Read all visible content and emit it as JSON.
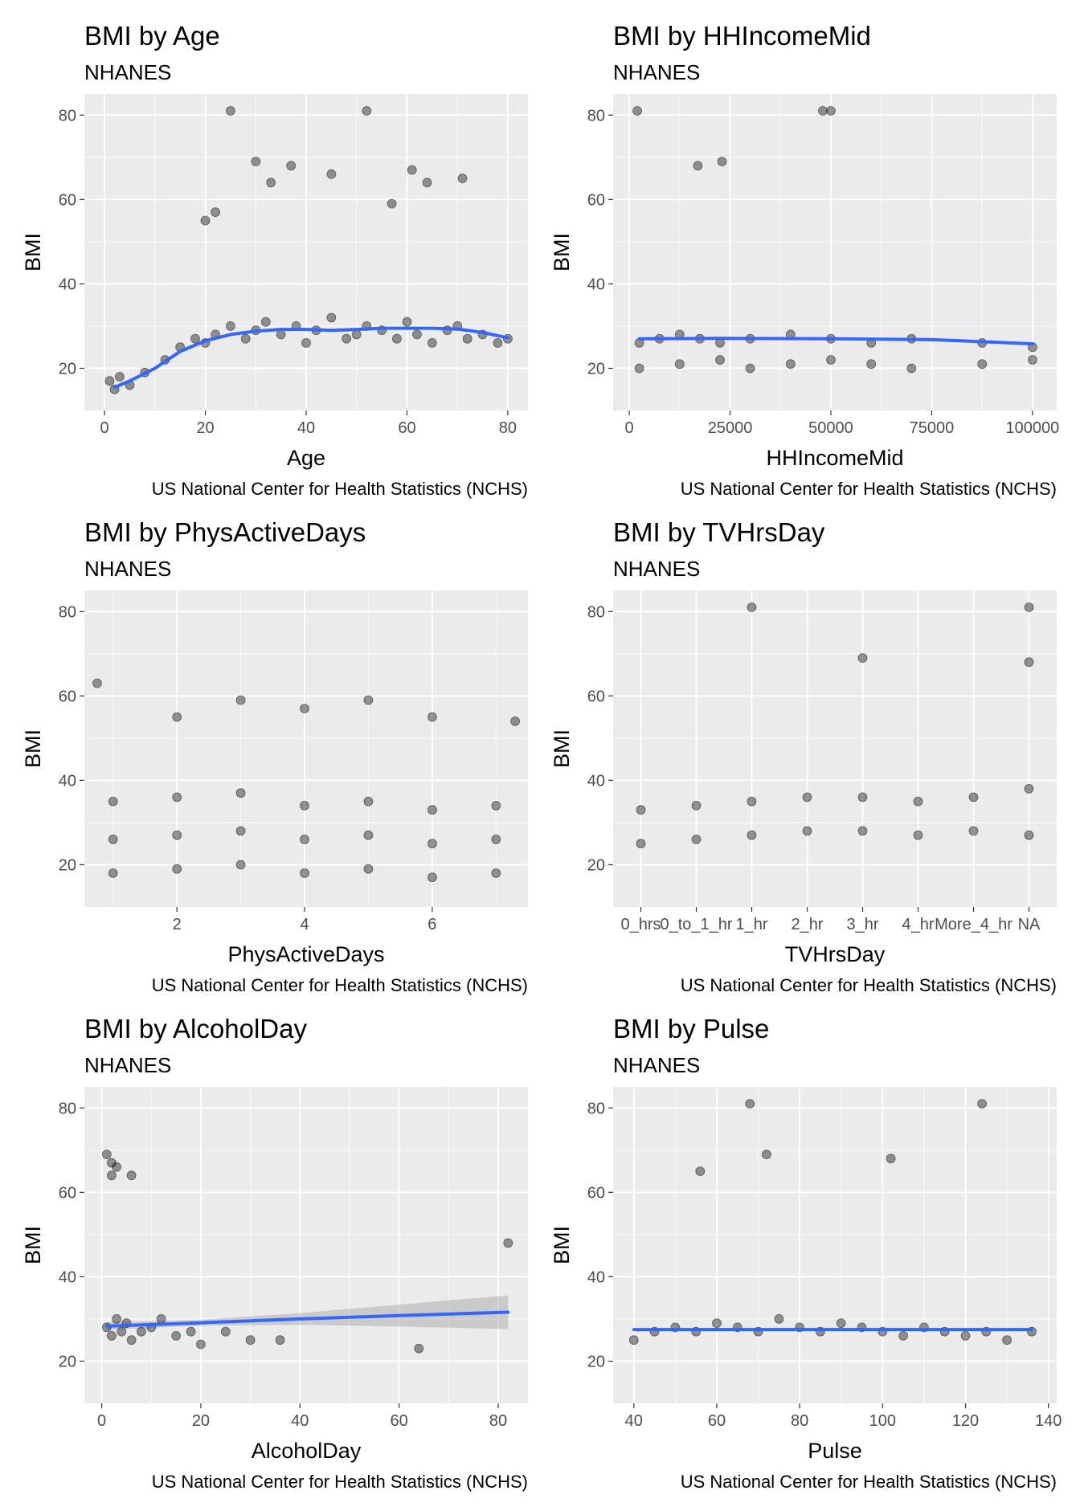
{
  "chart_data": [
    {
      "type": "scatter",
      "title": "BMI by Age",
      "subtitle": "NHANES",
      "xlabel": "Age",
      "ylabel": "BMI",
      "caption": "US National Center for Health Statistics (NCHS)",
      "x_ticks": [
        0,
        20,
        40,
        60,
        80
      ],
      "y_ticks": [
        20,
        40,
        60,
        80
      ],
      "xlim": [
        -4,
        84
      ],
      "ylim": [
        10,
        85
      ],
      "point_color": "#000000",
      "smooth_color": "#3366ff",
      "smooth": {
        "x": [
          2,
          5,
          10,
          15,
          20,
          25,
          30,
          35,
          40,
          45,
          50,
          55,
          60,
          65,
          70,
          75,
          80
        ],
        "y": [
          15.5,
          17.0,
          20.0,
          24.0,
          26.5,
          28.0,
          28.8,
          29.2,
          29.2,
          29.0,
          29.2,
          29.5,
          29.5,
          29.5,
          29.3,
          28.5,
          27.2
        ]
      },
      "points": {
        "x": [
          1,
          2,
          3,
          5,
          8,
          12,
          15,
          18,
          20,
          22,
          25,
          28,
          30,
          32,
          35,
          38,
          40,
          42,
          45,
          48,
          50,
          52,
          55,
          58,
          60,
          62,
          65,
          68,
          70,
          72,
          75,
          78,
          80,
          25,
          52,
          30,
          37,
          45,
          61,
          71,
          33,
          64,
          20,
          22,
          57
        ],
        "y": [
          17,
          15,
          18,
          16,
          19,
          22,
          25,
          27,
          26,
          28,
          30,
          27,
          29,
          31,
          28,
          30,
          26,
          29,
          32,
          27,
          28,
          30,
          29,
          27,
          31,
          28,
          26,
          29,
          30,
          27,
          28,
          26,
          27,
          81,
          81,
          69,
          68,
          66,
          67,
          65,
          64,
          64,
          55,
          57,
          59
        ]
      }
    },
    {
      "type": "scatter",
      "title": "BMI by HHIncomeMid",
      "subtitle": "NHANES",
      "xlabel": "HHIncomeMid",
      "ylabel": "BMI",
      "caption": "US National Center for Health Statistics (NCHS)",
      "x_ticks": [
        0,
        25000,
        50000,
        75000,
        100000
      ],
      "y_ticks": [
        20,
        40,
        60,
        80
      ],
      "xlim": [
        -4000,
        106000
      ],
      "ylim": [
        10,
        85
      ],
      "point_color": "#000000",
      "smooth_color": "#3366ff",
      "smooth": {
        "x": [
          2500,
          25000,
          50000,
          75000,
          87500,
          100000
        ],
        "y": [
          27.0,
          27.1,
          27.0,
          26.8,
          26.3,
          25.8
        ]
      },
      "points": {
        "x": [
          2500,
          7500,
          12500,
          17500,
          22500,
          30000,
          40000,
          50000,
          60000,
          70000,
          87500,
          100000,
          2500,
          12500,
          22500,
          30000,
          40000,
          50000,
          60000,
          70000,
          87500,
          100000,
          2000,
          48000,
          50000,
          23000,
          17000
        ],
        "y": [
          26,
          27,
          28,
          27,
          26,
          27,
          28,
          27,
          26,
          27,
          26,
          25,
          20,
          21,
          22,
          20,
          21,
          22,
          21,
          20,
          21,
          22,
          81,
          81,
          81,
          69,
          68
        ]
      }
    },
    {
      "type": "scatter",
      "title": "BMI by PhysActiveDays",
      "subtitle": "NHANES",
      "xlabel": "PhysActiveDays",
      "ylabel": "BMI",
      "caption": "US National Center for Health Statistics (NCHS)",
      "x_ticks": [
        2,
        4,
        6
      ],
      "y_ticks": [
        20,
        40,
        60,
        80
      ],
      "xlim": [
        0.55,
        7.5
      ],
      "ylim": [
        10,
        85
      ],
      "point_color": "#000000",
      "points": {
        "x": [
          1,
          2,
          3,
          4,
          5,
          6,
          7,
          1,
          2,
          3,
          4,
          5,
          6,
          7,
          1,
          2,
          3,
          4,
          5,
          6,
          7,
          0.75,
          3,
          5,
          2,
          4,
          6,
          7.3
        ],
        "y": [
          26,
          27,
          28,
          26,
          27,
          25,
          26,
          18,
          19,
          20,
          18,
          19,
          17,
          18,
          35,
          36,
          37,
          34,
          35,
          33,
          34,
          63,
          59,
          59,
          55,
          57,
          55,
          54
        ]
      }
    },
    {
      "type": "scatter",
      "title": "BMI by TVHrsDay",
      "subtitle": "NHANES",
      "xlabel": "TVHrsDay",
      "ylabel": "BMI",
      "caption": "US National Center for Health Statistics (NCHS)",
      "categories": [
        "0_hrs",
        "0_to_1_hr",
        "1_hr",
        "2_hr",
        "3_hr",
        "4_hr",
        "More_4_hr",
        "NA"
      ],
      "y_ticks": [
        20,
        40,
        60,
        80
      ],
      "ylim": [
        10,
        85
      ],
      "point_color": "#000000",
      "points": {
        "category": [
          "0_hrs",
          "0_to_1_hr",
          "1_hr",
          "2_hr",
          "3_hr",
          "4_hr",
          "More_4_hr",
          "NA",
          "0_hrs",
          "0_to_1_hr",
          "1_hr",
          "2_hr",
          "3_hr",
          "4_hr",
          "More_4_hr",
          "NA",
          "NA",
          "1_hr",
          "3_hr",
          "NA"
        ],
        "y": [
          25,
          26,
          27,
          28,
          28,
          27,
          28,
          27,
          33,
          34,
          35,
          36,
          36,
          35,
          36,
          38,
          81,
          81,
          69,
          68
        ]
      }
    },
    {
      "type": "scatter",
      "title": "BMI by AlcoholDay",
      "subtitle": "NHANES",
      "xlabel": "AlcoholDay",
      "ylabel": "BMI",
      "caption": "US National Center for Health Statistics (NCHS)",
      "x_ticks": [
        0,
        20,
        40,
        60,
        80
      ],
      "y_ticks": [
        20,
        40,
        60,
        80
      ],
      "xlim": [
        -3.5,
        86
      ],
      "ylim": [
        10,
        85
      ],
      "point_color": "#000000",
      "smooth_color": "#3366ff",
      "band_color": "#999999",
      "smooth": {
        "x": [
          1,
          20,
          40,
          60,
          82
        ],
        "y": [
          28.3,
          29.1,
          30.0,
          30.8,
          31.6
        ]
      },
      "band_lo": [
        27.4,
        28.4,
        28.6,
        28.2,
        27.6
      ],
      "band_hi": [
        29.2,
        29.8,
        31.4,
        33.4,
        35.6
      ],
      "points": {
        "x": [
          1,
          2,
          3,
          4,
          5,
          6,
          8,
          10,
          12,
          15,
          18,
          20,
          25,
          30,
          36,
          64,
          82,
          1,
          2,
          3,
          2,
          6
        ],
        "y": [
          28,
          26,
          30,
          27,
          29,
          25,
          27,
          28,
          30,
          26,
          27,
          24,
          27,
          25,
          25,
          23,
          48,
          69,
          67,
          66,
          64,
          64
        ]
      }
    },
    {
      "type": "scatter",
      "title": "BMI by Pulse",
      "subtitle": "NHANES",
      "xlabel": "Pulse",
      "ylabel": "BMI",
      "caption": "US National Center for Health Statistics (NCHS)",
      "x_ticks": [
        40,
        60,
        80,
        100,
        120,
        140
      ],
      "y_ticks": [
        20,
        40,
        60,
        80
      ],
      "xlim": [
        35,
        142
      ],
      "ylim": [
        10,
        85
      ],
      "point_color": "#000000",
      "smooth_color": "#3366ff",
      "smooth": {
        "x": [
          40,
          60,
          80,
          100,
          120,
          136
        ],
        "y": [
          27.5,
          27.5,
          27.5,
          27.5,
          27.5,
          27.5
        ]
      },
      "points": {
        "x": [
          40,
          45,
          50,
          55,
          60,
          65,
          70,
          75,
          80,
          85,
          90,
          95,
          100,
          105,
          110,
          115,
          120,
          125,
          130,
          136,
          68,
          124,
          72,
          102,
          56
        ],
        "y": [
          25,
          27,
          28,
          27,
          29,
          28,
          27,
          30,
          28,
          27,
          29,
          28,
          27,
          26,
          28,
          27,
          26,
          27,
          25,
          27,
          81,
          81,
          69,
          68,
          65
        ]
      }
    }
  ]
}
